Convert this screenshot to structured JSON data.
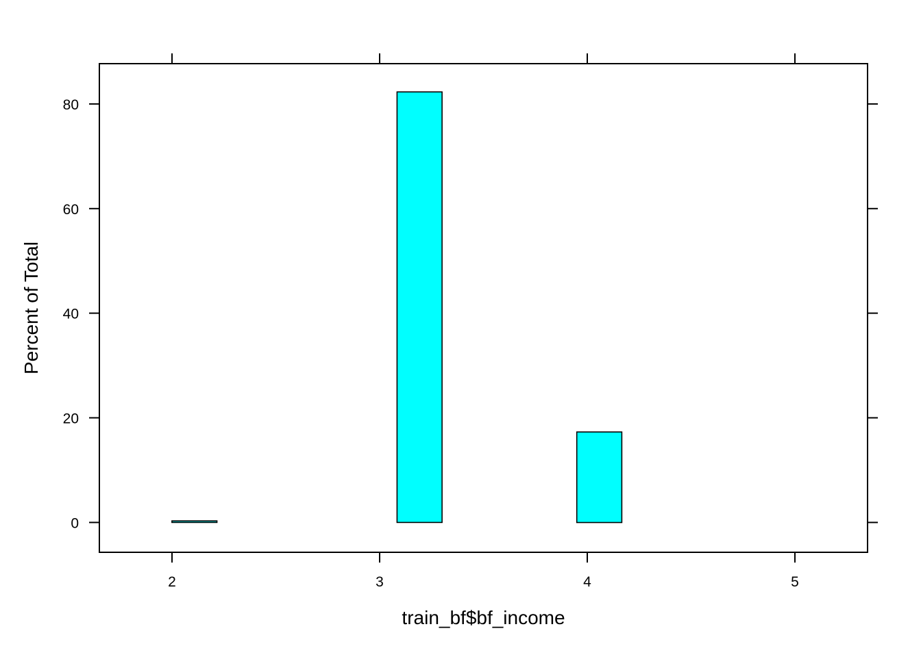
{
  "chart_data": {
    "type": "bar",
    "title": "",
    "xlabel": "train_bf$bf_income",
    "ylabel": "Percent of Total",
    "xlim": [
      1.65,
      5.35
    ],
    "ylim": [
      -5.7,
      87.7
    ],
    "x_ticks": [
      2,
      3,
      4,
      5
    ],
    "y_ticks": [
      0,
      20,
      40,
      60,
      80
    ],
    "bin_width": 0.2167,
    "bars": [
      {
        "x": 2.108,
        "value": 0.3
      },
      {
        "x": 2.325,
        "value": 0
      },
      {
        "x": 2.542,
        "value": 0
      },
      {
        "x": 2.758,
        "value": 0
      },
      {
        "x": 2.975,
        "value": 0
      },
      {
        "x": 3.192,
        "value": 82.3
      },
      {
        "x": 3.408,
        "value": 0
      },
      {
        "x": 3.625,
        "value": 0
      },
      {
        "x": 3.842,
        "value": 0
      },
      {
        "x": 4.058,
        "value": 17.3
      },
      {
        "x": 4.275,
        "value": 0
      },
      {
        "x": 4.492,
        "value": 0
      },
      {
        "x": 4.708,
        "value": 0
      },
      {
        "x": 4.925,
        "value": 0
      },
      {
        "x": 5.142,
        "value": 0
      }
    ],
    "bar_color": "#00FFFF",
    "bar_outline": "#000000",
    "grid": false,
    "legend": "none"
  }
}
